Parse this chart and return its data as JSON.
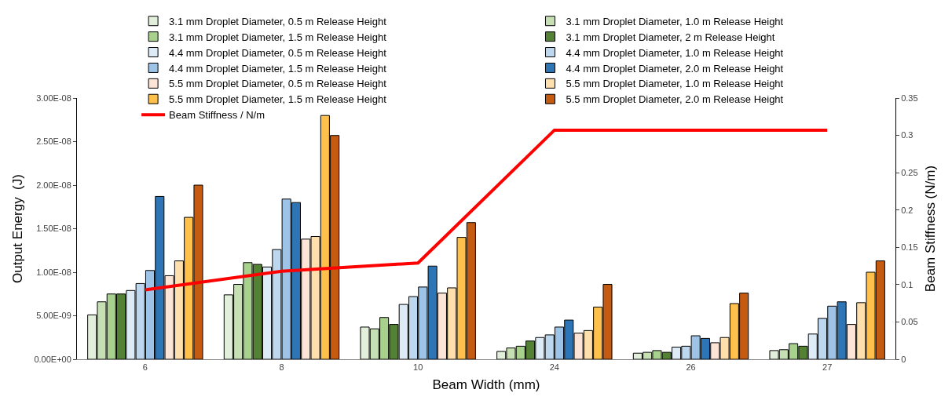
{
  "chart_data": {
    "type": "bar",
    "xlabel": "Beam Width (mm)",
    "ylabel": "Output Energy  (J)",
    "y2label": "Beam Stiffness (N/m)",
    "categories": [
      "6",
      "8",
      "10",
      "24",
      "26",
      "27"
    ],
    "series": [
      {
        "name": "3.1 mm Droplet Diameter, 0.5 m Release Height",
        "color": "#e2efda",
        "values": [
          5.1e-09,
          7.4e-09,
          3.7e-09,
          9e-10,
          7e-10,
          1e-09
        ]
      },
      {
        "name": "3.1 mm Droplet Diameter, 1.0 m Release Height",
        "color": "#c6e0b4",
        "values": [
          6.6e-09,
          8.6e-09,
          3.5e-09,
          1.3e-09,
          8e-10,
          1.1e-09
        ]
      },
      {
        "name": "3.1 mm Droplet Diameter, 1.5 m Release Height",
        "color": "#a9d18e",
        "values": [
          7.5e-09,
          1.11e-08,
          4.8e-09,
          1.5e-09,
          1e-09,
          1.8e-09
        ]
      },
      {
        "name": "3.1 mm Droplet Diameter, 2 m Release Height",
        "color": "#548235",
        "values": [
          7.5e-09,
          1.09e-08,
          4e-09,
          2.1e-09,
          8e-10,
          1.5e-09
        ]
      },
      {
        "name": "4.4 mm Droplet Diameter, 0.5 m Release Height",
        "color": "#ddebf7",
        "values": [
          7.9e-09,
          1.06e-08,
          6.3e-09,
          2.5e-09,
          1.4e-09,
          2.9e-09
        ]
      },
      {
        "name": "4.4 mm Droplet Diameter, 1.0 m Release Height",
        "color": "#bdd7ee",
        "values": [
          8.7e-09,
          1.26e-08,
          7.2e-09,
          2.8e-09,
          1.5e-09,
          4.7e-09
        ]
      },
      {
        "name": "4.4 mm Droplet Diameter, 1.5 m Release Height",
        "color": "#9dc3e6",
        "values": [
          1.02e-08,
          1.84e-08,
          8.3e-09,
          3.7e-09,
          2.7e-09,
          6.1e-09
        ]
      },
      {
        "name": "4.4 mm Droplet Diameter, 2.0 m Release Height",
        "color": "#2e75b6",
        "values": [
          1.87e-08,
          1.8e-08,
          1.07e-08,
          4.5e-09,
          2.4e-09,
          6.6e-09
        ]
      },
      {
        "name": "5.5 mm Droplet Diameter, 0.5 m Release Height",
        "color": "#fce4d6",
        "values": [
          9.6e-09,
          1.38e-08,
          7.6e-09,
          3e-09,
          1.9e-09,
          4e-09
        ]
      },
      {
        "name": "5.5 mm Droplet Diameter, 1.0 m Release Height",
        "color": "#ffdfac",
        "values": [
          1.13e-08,
          1.41e-08,
          8.2e-09,
          3.3e-09,
          2.5e-09,
          6.5e-09
        ]
      },
      {
        "name": "5.5 mm Droplet Diameter, 1.5 m Release Height",
        "color": "#ffc04c",
        "values": [
          1.63e-08,
          2.8e-08,
          1.4e-08,
          6e-09,
          6.4e-09,
          1e-08
        ]
      },
      {
        "name": "5.5 mm Droplet Diameter, 2.0 m Release Height",
        "color": "#c55a11",
        "values": [
          2e-08,
          2.57e-08,
          1.57e-08,
          8.6e-09,
          7.6e-09,
          1.13e-08
        ]
      },
      {
        "name": "Beam Stiffness / N/m",
        "type": "line",
        "axis": "y2",
        "color": "#ff0000",
        "values": [
          0.093,
          0.118,
          0.129,
          0.307,
          0.307,
          0.307
        ]
      }
    ],
    "ylim": [
      0,
      3e-08
    ],
    "yticks": [
      {
        "value": 0,
        "label": "0.00E+00"
      },
      {
        "value": 5e-09,
        "label": "5.00E-09"
      },
      {
        "value": 1e-08,
        "label": "1.00E-08"
      },
      {
        "value": 1.5e-08,
        "label": "1.50E-08"
      },
      {
        "value": 2e-08,
        "label": "2.00E-08"
      },
      {
        "value": 2.5e-08,
        "label": "2.50E-08"
      },
      {
        "value": 3e-08,
        "label": "3.00E-08"
      }
    ],
    "y2lim": [
      0,
      0.35
    ],
    "y2ticks": [
      0,
      0.05,
      0.1,
      0.15,
      0.2,
      0.25,
      0.3,
      0.35
    ],
    "grid": false,
    "legend": "top",
    "marker": "none",
    "line_style": "solid"
  }
}
